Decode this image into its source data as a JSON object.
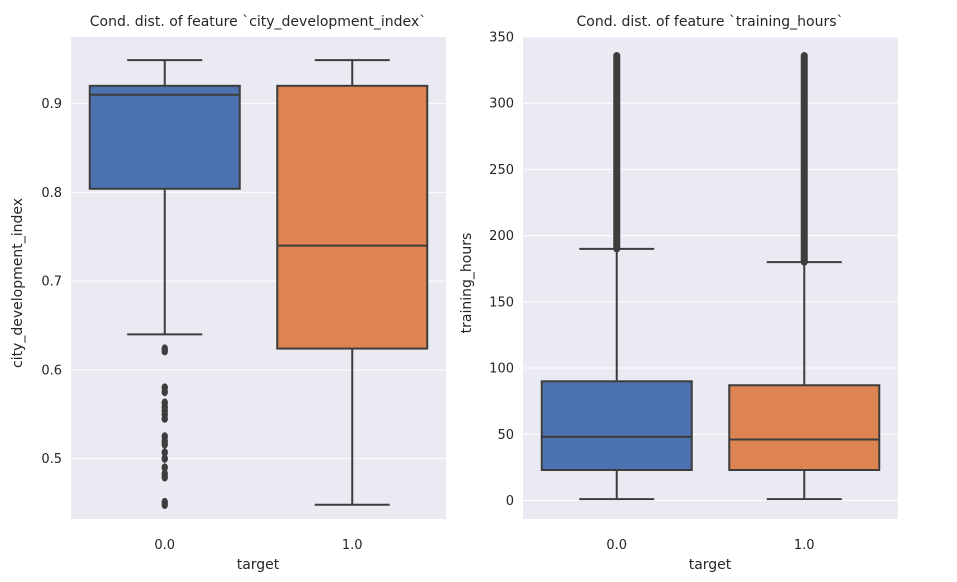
{
  "chart_data": [
    {
      "type": "boxplot",
      "title": "Cond. dist. of feature `city_development_index`",
      "xlabel": "target",
      "ylabel": "city_development_index",
      "categories": [
        "0.0",
        "1.0"
      ],
      "ylim": [
        0.432,
        0.975
      ],
      "yticks": [
        0.5,
        0.6,
        0.7,
        0.8,
        0.9
      ],
      "ytick_labels": [
        "0.5",
        "0.6",
        "0.7",
        "0.8",
        "0.9"
      ],
      "grid": true,
      "boxes": [
        {
          "category": "0.0",
          "color": "#4c72b0",
          "whisker_low": 0.64,
          "q1": 0.804,
          "median": 0.91,
          "q3": 0.92,
          "whisker_high": 0.949,
          "outliers": [
            0.448,
            0.451,
            0.479,
            0.483,
            0.49,
            0.5,
            0.507,
            0.516,
            0.52,
            0.525,
            0.545,
            0.55,
            0.554,
            0.558,
            0.563,
            0.575,
            0.58,
            0.621,
            0.624
          ]
        },
        {
          "category": "1.0",
          "color": "#dd8452",
          "whisker_low": 0.448,
          "q1": 0.624,
          "median": 0.74,
          "q3": 0.92,
          "whisker_high": 0.949,
          "outliers": []
        }
      ]
    },
    {
      "type": "boxplot",
      "title": "Cond. dist. of feature `training_hours`",
      "xlabel": "target",
      "ylabel": "training_hours",
      "categories": [
        "0.0",
        "1.0"
      ],
      "ylim": [
        -14,
        350
      ],
      "yticks": [
        0,
        50,
        100,
        150,
        200,
        250,
        300,
        350
      ],
      "ytick_labels": [
        "0",
        "50",
        "100",
        "150",
        "200",
        "250",
        "300",
        "350"
      ],
      "grid": true,
      "boxes": [
        {
          "category": "0.0",
          "color": "#4c72b0",
          "whisker_low": 1,
          "q1": 23,
          "median": 48,
          "q3": 90,
          "whisker_high": 190,
          "outlier_range": [
            190,
            336
          ]
        },
        {
          "category": "1.0",
          "color": "#dd8452",
          "whisker_low": 1,
          "q1": 23,
          "median": 46,
          "q3": 87,
          "whisker_high": 180,
          "outlier_range": [
            180,
            336
          ]
        }
      ]
    }
  ]
}
